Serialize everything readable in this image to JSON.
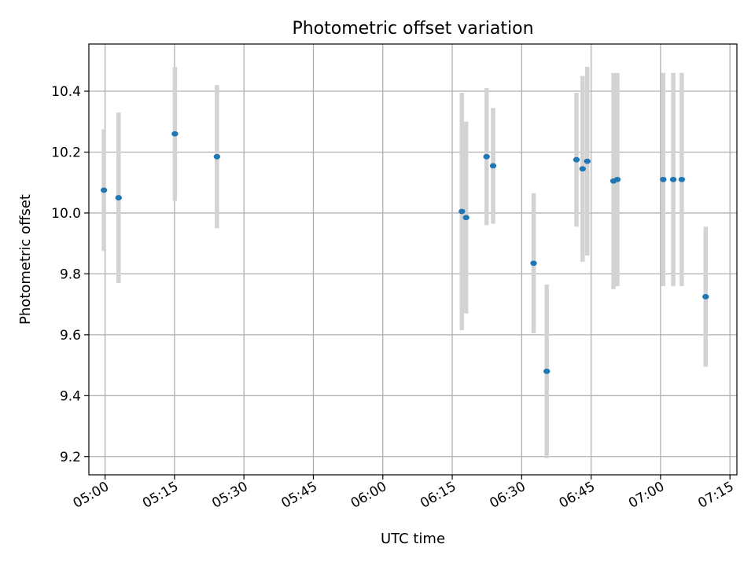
{
  "chart_data": {
    "type": "scatter",
    "title": "Photometric offset variation",
    "xlabel": "UTC time",
    "ylabel": "Photometric offset",
    "grid": true,
    "colors": {
      "point": "#1f77b4",
      "errorbar": "#d3d3d3",
      "grid": "#b0b0b0"
    },
    "xlim": [
      "04:56:30",
      "07:16:30"
    ],
    "ylim": [
      9.14,
      10.555
    ],
    "x_ticks": [
      "05:00",
      "05:15",
      "05:30",
      "05:45",
      "06:00",
      "06:15",
      "06:30",
      "06:45",
      "07:00",
      "07:15"
    ],
    "y_ticks": [
      "9.2",
      "9.4",
      "9.6",
      "9.8",
      "10.0",
      "10.2",
      "10.4"
    ],
    "points": [
      {
        "time": "04:59:45",
        "y": 10.075,
        "err": 0.2
      },
      {
        "time": "05:02:55",
        "y": 10.05,
        "err": 0.28
      },
      {
        "time": "05:15:05",
        "y": 10.26,
        "err": 0.22
      },
      {
        "time": "05:24:10",
        "y": 10.185,
        "err": 0.235
      },
      {
        "time": "06:17:05",
        "y": 10.005,
        "err": 0.39
      },
      {
        "time": "06:18:00",
        "y": 9.985,
        "err": 0.315
      },
      {
        "time": "06:22:25",
        "y": 10.185,
        "err": 0.225
      },
      {
        "time": "06:23:50",
        "y": 10.155,
        "err": 0.19
      },
      {
        "time": "06:32:35",
        "y": 9.835,
        "err": 0.23
      },
      {
        "time": "06:35:25",
        "y": 9.48,
        "err": 0.285
      },
      {
        "time": "06:41:50",
        "y": 10.175,
        "err": 0.22
      },
      {
        "time": "06:43:10",
        "y": 10.145,
        "err": 0.305
      },
      {
        "time": "06:44:10",
        "y": 10.17,
        "err": 0.31
      },
      {
        "time": "06:49:50",
        "y": 10.105,
        "err": 0.355
      },
      {
        "time": "06:50:40",
        "y": 10.11,
        "err": 0.35
      },
      {
        "time": "07:00:35",
        "y": 10.11,
        "err": 0.35
      },
      {
        "time": "07:02:45",
        "y": 10.11,
        "err": 0.35
      },
      {
        "time": "07:04:35",
        "y": 10.11,
        "err": 0.35
      },
      {
        "time": "07:09:45",
        "y": 9.725,
        "err": 0.23
      }
    ]
  }
}
